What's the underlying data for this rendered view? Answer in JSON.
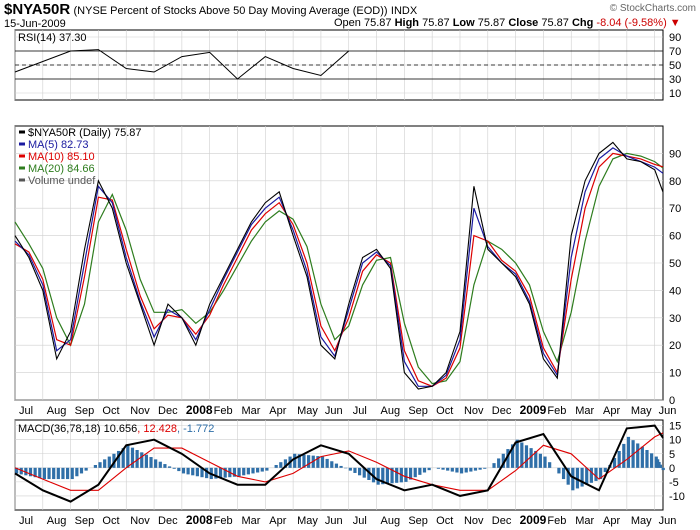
{
  "header": {
    "symbol": "$NYA50R",
    "description": "(NYSE Percent of Stocks Above 50 Day Moving Average (EOD))",
    "exchange": "INDX",
    "date": "15-Jun-2009",
    "copyright": "© StockCharts.com",
    "open_label": "Open",
    "open": "75.87",
    "high_label": "High",
    "high": "75.87",
    "low_label": "Low",
    "low": "75.87",
    "close_label": "Close",
    "close": "75.87",
    "chg_label": "Chg",
    "chg": "-8.04 (-9.58%)"
  },
  "colors": {
    "price": "#000000",
    "ma5": "#1a1aa0",
    "ma10": "#dd0000",
    "ma20": "#2e7d1e",
    "macd": "#000000",
    "signal": "#dd0000",
    "hist": "#2f6fa8",
    "rsi": "#000000",
    "grid": "#cfcfcf",
    "axis": "#000000",
    "chg_arrow": "#c00000"
  },
  "chart_data": [
    {
      "type": "line",
      "panel": "rsi",
      "title": "RSI(14) 37.30",
      "ylim": [
        0,
        100
      ],
      "yticks": [
        "10",
        "30",
        "50",
        "70",
        "90"
      ],
      "reference_lines": [
        30,
        50,
        70
      ],
      "series": [
        {
          "name": "RSI(14)",
          "x": [
            0,
            1,
            2,
            3,
            4,
            5,
            6,
            7,
            8,
            9,
            10,
            11,
            12
          ],
          "values": [
            40,
            55,
            70,
            72,
            45,
            40,
            62,
            68,
            30,
            62,
            45,
            35,
            70
          ]
        }
      ]
    },
    {
      "type": "line",
      "panel": "price",
      "title": "$NYA50R (Daily) 75.87",
      "ylim": [
        0,
        100
      ],
      "yticks": [
        "0",
        "10",
        "20",
        "30",
        "40",
        "50",
        "60",
        "70",
        "80",
        "90"
      ],
      "xlabels": [
        "Jul",
        "Aug",
        "Sep",
        "Oct",
        "Nov",
        "Dec",
        "2008",
        "Feb",
        "Mar",
        "Apr",
        "May",
        "Jun",
        "Jul",
        "Aug",
        "Sep",
        "Oct",
        "Nov",
        "Dec",
        "2009",
        "Feb",
        "Mar",
        "Apr",
        "May",
        "Jun"
      ],
      "legend": [
        "$NYA50R (Daily) 75.87",
        "MA(5) 82.73",
        "MA(10) 85.10",
        "MA(20) 84.66",
        "Volume undef"
      ],
      "x": [
        0,
        0.5,
        1,
        1.5,
        2,
        2.5,
        3,
        3.5,
        4,
        4.5,
        5,
        5.5,
        6,
        6.5,
        7,
        7.5,
        8,
        8.5,
        9,
        9.5,
        10,
        10.5,
        11,
        11.5,
        12,
        12.5,
        13,
        13.5,
        14,
        14.5,
        15,
        15.5,
        16,
        16.5,
        17,
        17.5,
        18,
        18.5,
        19,
        19.5,
        20,
        20.5,
        21,
        21.5,
        22,
        22.5,
        23,
        23.3
      ],
      "series": [
        {
          "name": "$NYA50R",
          "values": [
            60,
            52,
            40,
            15,
            25,
            55,
            80,
            70,
            50,
            35,
            20,
            35,
            30,
            20,
            35,
            45,
            55,
            65,
            72,
            76,
            60,
            45,
            20,
            15,
            35,
            52,
            55,
            48,
            10,
            4,
            5,
            10,
            25,
            78,
            55,
            50,
            45,
            35,
            15,
            8,
            60,
            80,
            90,
            94,
            88,
            87,
            84,
            75.87
          ]
        },
        {
          "name": "MA(5)",
          "values": [
            58,
            53,
            42,
            18,
            22,
            50,
            78,
            72,
            52,
            36,
            23,
            33,
            30,
            22,
            33,
            44,
            54,
            64,
            70,
            74,
            62,
            47,
            23,
            16,
            33,
            50,
            54,
            49,
            14,
            5,
            5,
            9,
            22,
            70,
            56,
            50,
            46,
            36,
            17,
            9,
            52,
            76,
            88,
            92,
            89,
            87,
            85,
            82.73
          ]
        },
        {
          "name": "MA(10)",
          "values": [
            57,
            54,
            44,
            22,
            20,
            45,
            74,
            73,
            55,
            38,
            26,
            31,
            30,
            24,
            31,
            42,
            52,
            62,
            68,
            72,
            64,
            50,
            27,
            18,
            30,
            47,
            53,
            50,
            18,
            7,
            5,
            8,
            19,
            60,
            58,
            51,
            47,
            38,
            19,
            10,
            44,
            70,
            85,
            90,
            89,
            88,
            86,
            85.1
          ]
        },
        {
          "name": "MA(20)",
          "values": [
            65,
            57,
            48,
            30,
            20,
            35,
            65,
            75,
            62,
            44,
            32,
            32,
            33,
            28,
            32,
            40,
            49,
            58,
            65,
            69,
            66,
            56,
            35,
            22,
            27,
            42,
            51,
            52,
            28,
            12,
            6,
            7,
            14,
            42,
            58,
            55,
            50,
            42,
            25,
            14,
            32,
            58,
            78,
            88,
            90,
            89,
            87,
            84.66
          ]
        }
      ]
    },
    {
      "type": "line",
      "panel": "macd",
      "title": "MACD(36,78,18)",
      "values_text": [
        "10.656",
        "12.428",
        "-1.772"
      ],
      "ylim": [
        -15,
        17
      ],
      "yticks": [
        "15",
        "10",
        "5",
        "0",
        "-5",
        "-10"
      ],
      "xlabels": [
        "Jul",
        "Aug",
        "Sep",
        "Oct",
        "Nov",
        "Dec",
        "2008",
        "Feb",
        "Mar",
        "Apr",
        "May",
        "Jun",
        "Jul",
        "Aug",
        "Sep",
        "Oct",
        "Nov",
        "Dec",
        "2009",
        "Feb",
        "Mar",
        "Apr",
        "May",
        "Jun"
      ],
      "x": [
        0,
        1,
        2,
        3,
        4,
        5,
        6,
        7,
        8,
        9,
        10,
        11,
        12,
        13,
        14,
        15,
        16,
        17,
        18,
        19,
        20,
        21,
        22,
        23,
        23.3
      ],
      "series": [
        {
          "name": "MACD",
          "values": [
            -2,
            -8,
            -12,
            -6,
            8,
            10,
            5,
            -2,
            -6,
            -6,
            3,
            8,
            5,
            -4,
            -8,
            -6,
            -10,
            -8,
            9,
            12,
            -3,
            -8,
            14,
            15,
            10.656
          ]
        },
        {
          "name": "Signal",
          "values": [
            0,
            -4,
            -8,
            -8,
            0,
            7,
            7,
            2,
            -3,
            -5,
            -2,
            4,
            6,
            2,
            -3,
            -6,
            -8,
            -8,
            -1,
            8,
            5,
            -4,
            3,
            11,
            12.428
          ]
        },
        {
          "name": "Histogram",
          "values": [
            -2,
            -4,
            -4,
            2,
            8,
            3,
            -2,
            -4,
            -3,
            -1,
            5,
            4,
            -1,
            -6,
            -5,
            0,
            -2,
            0,
            10,
            4,
            -8,
            -4,
            11,
            4,
            -1.772
          ]
        }
      ]
    }
  ]
}
